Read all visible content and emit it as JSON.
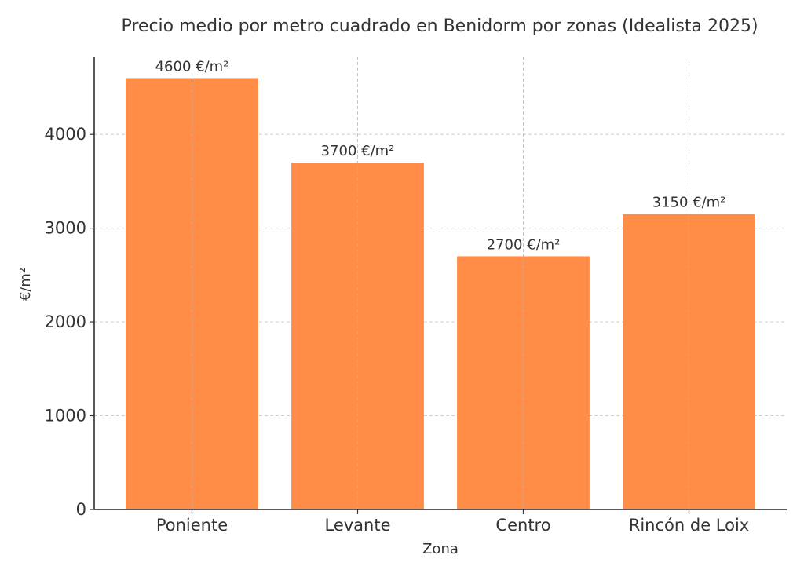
{
  "chart_data": {
    "type": "bar",
    "title": "Precio medio por metro cuadrado en Benidorm por zonas (Idealista 2025)",
    "xlabel": "Zona",
    "ylabel": "€/m²",
    "categories": [
      "Poniente",
      "Levante",
      "Centro",
      "Rincón de Loix"
    ],
    "values": [
      4600,
      3700,
      2700,
      3150
    ],
    "data_labels": [
      "4600 €/m²",
      "3700 €/m²",
      "2700 €/m²",
      "3150 €/m²"
    ],
    "yticks": [
      0,
      1000,
      2000,
      3000,
      4000
    ],
    "ytick_labels": [
      "0",
      "1000",
      "2000",
      "3000",
      "4000"
    ],
    "ylim": [
      0,
      4830
    ],
    "grid": true,
    "bar_color": "#FF8C47"
  }
}
